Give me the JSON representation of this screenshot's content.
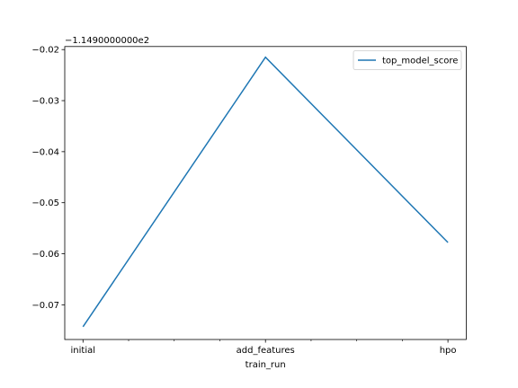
{
  "chart_data": {
    "type": "line",
    "title": "",
    "xlabel": "train_run",
    "ylabel": "",
    "categories": [
      "initial",
      "add_features",
      "hpo"
    ],
    "x_tick_labels": [
      "initial",
      "add_features",
      "hpo"
    ],
    "y_offset_label": "−1.1490000000e2",
    "y_offset": -114.9,
    "yticks": [
      -0.02,
      -0.03,
      -0.04,
      -0.05,
      -0.06,
      -0.07
    ],
    "y_tick_labels": [
      "−0.02",
      "−0.03",
      "−0.04",
      "−0.05",
      "−0.06",
      "−0.07"
    ],
    "ylim": [
      -0.0768,
      -0.0194
    ],
    "xlim": [
      -0.1,
      2.1
    ],
    "grid": false,
    "legend_position": "top-right",
    "series": [
      {
        "name": "top_model_score",
        "color": "#1f77b4",
        "values": [
          -0.0743,
          -0.0215,
          -0.0578
        ]
      }
    ]
  }
}
